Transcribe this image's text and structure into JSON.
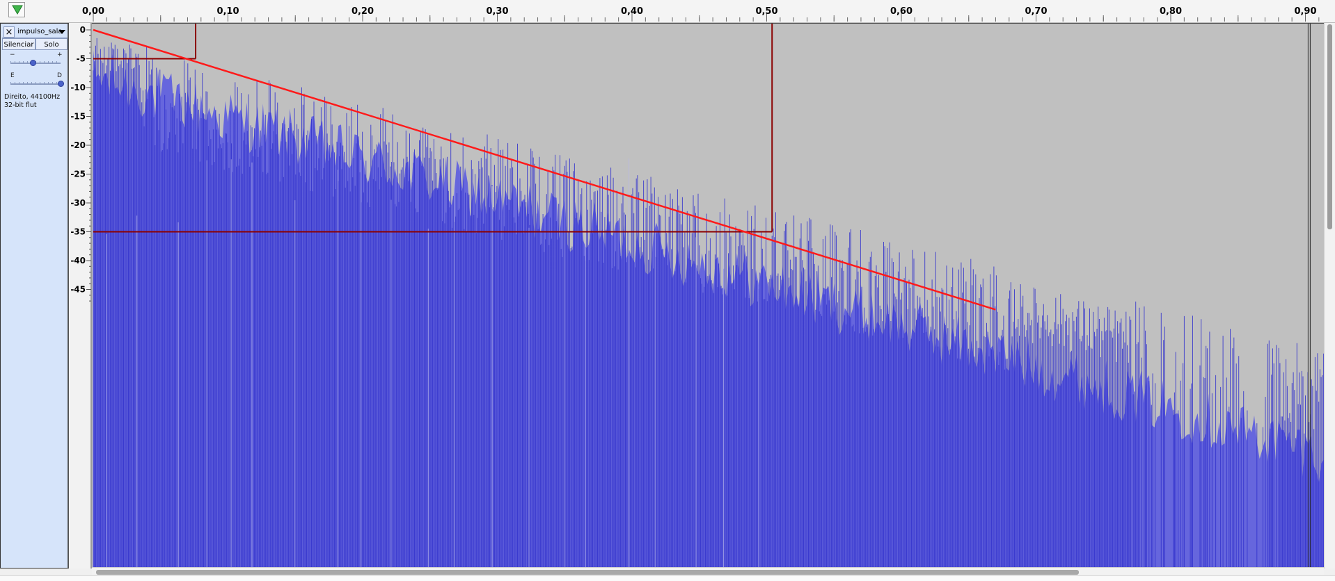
{
  "timeline": {
    "play_icon": "play-triangle-icon",
    "play_color": "#3fb54a",
    "labels": [
      "0,00",
      "0,10",
      "0,20",
      "0,30",
      "0,40",
      "0,50",
      "0,60",
      "0,70",
      "0,80",
      "0,90"
    ]
  },
  "track": {
    "close_label": "×",
    "name": "impulso_sala",
    "mute_label": "Silenciar",
    "solo_label": "Solo",
    "gain_minus": "−",
    "gain_plus": "+",
    "gain_level": 0.45,
    "pan_left": "E",
    "pan_right": "D",
    "pan_level": 1.0,
    "info_line1": "Direito, 44100Hz",
    "info_line2": "32-bit flut"
  },
  "db_scale": {
    "labels": [
      "0",
      "-5",
      "-10",
      "-15",
      "-20",
      "-25",
      "-30",
      "-35",
      "-40",
      "-45"
    ]
  },
  "waveform": {
    "colors": {
      "waveform": "#6666dd",
      "waveform_dark": "#3333cc",
      "background": "#c0c0c0",
      "decay_line": "#ff1a1a",
      "marker": "#8b0000"
    },
    "decay_line": {
      "start": [
        0.0,
        0.0
      ],
      "end": [
        0.67,
        -48.5
      ]
    },
    "markers": {
      "early_time_s": 0.076,
      "early_level_db": -5,
      "late_time_s": 0.504,
      "late_level_db": -35
    },
    "playhead_time_s": 0.902
  }
}
